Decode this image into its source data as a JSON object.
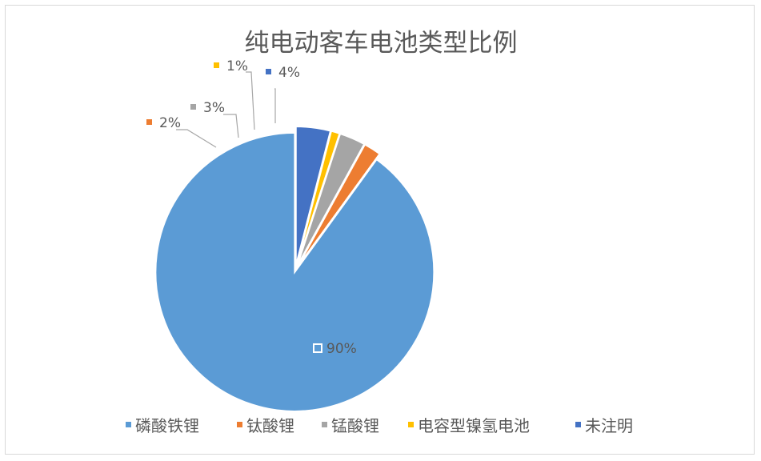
{
  "chart_data": {
    "type": "pie",
    "title": "纯电动客车电池类型比例",
    "categories": [
      "磷酸铁锂",
      "钛酸锂",
      "锰酸锂",
      "电容型镍氢电池",
      "未注明"
    ],
    "values": [
      90,
      2,
      3,
      1,
      4
    ],
    "labels": [
      "90%",
      "2%",
      "3%",
      "1%",
      "4%"
    ],
    "colors": [
      "#5b9bd5",
      "#ed7d31",
      "#a5a5a5",
      "#ffc000",
      "#4472c4"
    ],
    "legend_position": "bottom",
    "start_angle": "12 o'clock",
    "direction": "counterclockwise"
  }
}
